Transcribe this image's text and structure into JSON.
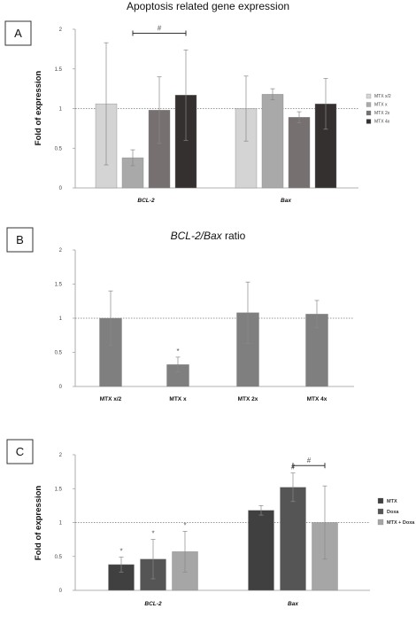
{
  "chart_data": [
    {
      "panel": "A",
      "type": "bar",
      "title": "Apoptosis related gene expression",
      "ylabel": "Fold of expression",
      "xlabel": "",
      "ylim": [
        0,
        2
      ],
      "yticks": [
        "0",
        "0.5",
        "1",
        "1.5",
        "2"
      ],
      "reference_line": 1,
      "categories": [
        "BCL-2",
        "Bax"
      ],
      "series": [
        {
          "name": "MTX x/2",
          "color": "#d4d4d4",
          "values": [
            1.06,
            1.0
          ],
          "errors": [
            0.77,
            0.41
          ]
        },
        {
          "name": "MTX x",
          "color": "#a9a9a9",
          "values": [
            0.38,
            1.18
          ],
          "errors": [
            0.1,
            0.07
          ]
        },
        {
          "name": "MTX 2x",
          "color": "#767170",
          "values": [
            0.98,
            0.89
          ],
          "errors": [
            0.42,
            0.07
          ]
        },
        {
          "name": "MTX 4x",
          "color": "#353030",
          "values": [
            1.17,
            1.06
          ],
          "errors": [
            0.57,
            0.32
          ]
        }
      ],
      "annotations": [
        {
          "text": "#",
          "between": [
            "MTX x",
            "MTX 4x"
          ],
          "category": "BCL-2"
        }
      ],
      "legend_position": "right"
    },
    {
      "panel": "B",
      "type": "bar",
      "title_parts": [
        "BCL-2/Bax",
        " ratio"
      ],
      "ylabel": "",
      "xlabel": "",
      "ylim": [
        0,
        2
      ],
      "yticks": [
        "0",
        "0.5",
        "1",
        "1.5",
        "2"
      ],
      "reference_line": 1,
      "categories": [
        "MTX x/2",
        "MTX x",
        "MTX 2x",
        "MTX 4x"
      ],
      "series": [
        {
          "color": "#7f7f7f",
          "values": [
            1.0,
            0.32,
            1.08,
            1.06
          ],
          "errors": [
            0.4,
            0.11,
            0.45,
            0.2
          ],
          "marks": [
            "",
            "*",
            "",
            ""
          ]
        }
      ]
    },
    {
      "panel": "C",
      "type": "bar",
      "ylabel": "Fold of expression",
      "xlabel": "",
      "ylim": [
        0,
        2
      ],
      "yticks": [
        "0",
        "0.5",
        "1",
        "1.5",
        "2"
      ],
      "reference_line": 1,
      "categories": [
        "BCL-2",
        "Bax"
      ],
      "series": [
        {
          "name": "MTX",
          "color": "#404040",
          "values": [
            0.38,
            1.18
          ],
          "errors": [
            0.11,
            0.07
          ],
          "marks": [
            "*",
            ""
          ]
        },
        {
          "name": "Doxa",
          "color": "#555555",
          "values": [
            0.46,
            1.52
          ],
          "errors": [
            0.29,
            0.21
          ],
          "marks": [
            "*",
            "#"
          ]
        },
        {
          "name": "MTX + Doxa",
          "color": "#a6a6a6",
          "values": [
            0.57,
            1.0
          ],
          "errors": [
            0.3,
            0.54
          ],
          "marks": [
            "*",
            ""
          ]
        }
      ],
      "annotations": [
        {
          "text": "#",
          "between": [
            "Doxa",
            "MTX + Doxa"
          ],
          "category": "Bax"
        }
      ],
      "legend_position": "right"
    }
  ]
}
